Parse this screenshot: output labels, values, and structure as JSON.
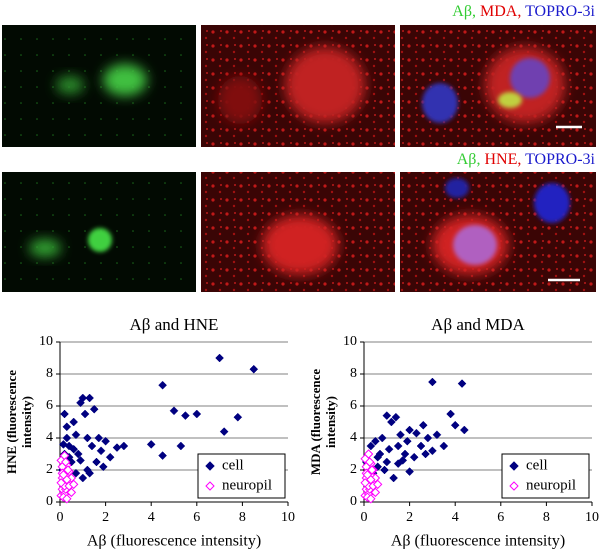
{
  "panels": [
    {
      "label": [
        {
          "text": "Aβ,",
          "color": "#33cc33"
        },
        {
          "text": "MDA,",
          "color": "#e00000"
        },
        {
          "text": "TOPRO-3i",
          "color": "#1a1acc"
        }
      ]
    },
    {
      "label": [
        {
          "text": "Aβ,",
          "color": "#33cc33"
        },
        {
          "text": "HNE,",
          "color": "#e00000"
        },
        {
          "text": "TOPRO-3i",
          "color": "#1a1acc"
        }
      ]
    }
  ],
  "chart_data": [
    {
      "type": "scatter",
      "title": "Aβ and HNE",
      "x_label": "Aβ (fluorescence intensity)",
      "y_label": "HNE (fluorescence intensity)",
      "xlim": [
        0,
        10
      ],
      "xticks": [
        0,
        2,
        4,
        6,
        8,
        10
      ],
      "ylim": [
        0,
        10
      ],
      "yticks": [
        0,
        2,
        4,
        6,
        8,
        10
      ],
      "grid": true,
      "legend": "lower right",
      "series": [
        {
          "name": "cell",
          "color": "#000080",
          "marker": "filled-diamond",
          "x": [
            0.1,
            0.2,
            0.3,
            0.4,
            0.5,
            0.6,
            0.7,
            0.8,
            0.9,
            1.0,
            1.1,
            1.2,
            1.3,
            1.4,
            1.5,
            1.6,
            1.7,
            1.8,
            2.0,
            2.2,
            2.5,
            2.8,
            1.0,
            0.5,
            1.2,
            4.0,
            4.5,
            4.5,
            5.0,
            5.3,
            5.5,
            6.0,
            7.0,
            7.2,
            7.8,
            8.5,
            0.3,
            0.2,
            0.7,
            1.9,
            0.15,
            0.4,
            0.6,
            0.9,
            1.3
          ],
          "values": [
            2.0,
            3.0,
            4.0,
            3.5,
            2.5,
            5.0,
            4.2,
            3.0,
            6.2,
            6.5,
            5.5,
            4.0,
            6.5,
            3.5,
            5.8,
            2.5,
            4.0,
            3.2,
            3.8,
            2.8,
            3.4,
            3.5,
            1.5,
            1.2,
            2.0,
            3.6,
            7.3,
            2.9,
            5.7,
            3.5,
            5.4,
            5.5,
            9.0,
            4.4,
            5.3,
            8.3,
            4.7,
            5.5,
            1.8,
            2.2,
            3.6,
            2.8,
            3.3,
            2.6,
            1.8
          ]
        },
        {
          "name": "neuropil",
          "color": "#ff00ff",
          "marker": "open-diamond",
          "x": [
            0.05,
            0.1,
            0.1,
            0.15,
            0.2,
            0.2,
            0.25,
            0.3,
            0.3,
            0.35,
            0.4,
            0.4,
            0.45,
            0.5,
            0.05,
            0.1,
            0.15,
            0.2,
            0.25,
            0.3,
            0.35,
            0.1,
            0.2,
            0.3,
            0.05,
            0.15,
            0.25,
            0.4,
            0.5,
            0.6
          ],
          "values": [
            0.4,
            0.8,
            1.5,
            1.1,
            0.5,
            1.9,
            1.3,
            0.9,
            2.3,
            1.6,
            0.7,
            1.9,
            1.2,
            1.5,
            2.6,
            2.2,
            0.3,
            2.9,
            0.8,
            0.2,
            2.0,
            1.8,
            1.0,
            1.4,
            1.2,
            1.7,
            2.5,
            1.0,
            0.6,
            1.1
          ]
        }
      ]
    },
    {
      "type": "scatter",
      "title": "Aβ and MDA",
      "x_label": "Aβ (fluorescence intensity)",
      "y_label": "MDA (fluorescence intensity)",
      "xlim": [
        0,
        10
      ],
      "xticks": [
        0,
        2,
        4,
        6,
        8,
        10
      ],
      "ylim": [
        0,
        10
      ],
      "yticks": [
        0,
        2,
        4,
        6,
        8,
        10
      ],
      "grid": true,
      "legend": "lower right",
      "series": [
        {
          "name": "cell",
          "color": "#000080",
          "marker": "filled-diamond",
          "x": [
            0.1,
            0.3,
            0.5,
            0.6,
            0.8,
            1.0,
            1.2,
            1.4,
            1.5,
            1.6,
            1.8,
            2.0,
            2.2,
            2.5,
            2.6,
            2.8,
            3.0,
            3.2,
            3.5,
            3.8,
            4.0,
            4.3,
            4.4,
            1.0,
            1.3,
            0.7,
            2.3,
            0.4,
            1.7,
            3.0,
            2.0,
            0.9,
            0.2,
            1.1,
            1.9,
            2.7,
            0.6,
            1.5
          ],
          "values": [
            2.5,
            3.5,
            3.8,
            2.2,
            4.0,
            5.4,
            5.0,
            5.3,
            3.5,
            4.2,
            3.0,
            4.5,
            2.8,
            3.5,
            4.8,
            4.0,
            7.5,
            4.2,
            3.5,
            5.5,
            4.8,
            7.4,
            4.5,
            2.5,
            1.5,
            3.0,
            4.3,
            1.8,
            2.6,
            3.2,
            1.9,
            2.0,
            3.0,
            3.3,
            3.8,
            3.0,
            2.8,
            2.4
          ]
        },
        {
          "name": "neuropil",
          "color": "#ff00ff",
          "marker": "open-diamond",
          "x": [
            0.05,
            0.1,
            0.1,
            0.15,
            0.2,
            0.2,
            0.25,
            0.3,
            0.3,
            0.35,
            0.4,
            0.4,
            0.45,
            0.5,
            0.05,
            0.1,
            0.15,
            0.2,
            0.25,
            0.3,
            0.35,
            0.1,
            0.2,
            0.3,
            0.05,
            0.15,
            0.25,
            0.4,
            0.5,
            0.6
          ],
          "values": [
            0.4,
            0.8,
            1.5,
            1.1,
            0.5,
            1.9,
            1.3,
            0.9,
            2.4,
            1.6,
            0.7,
            2.0,
            1.2,
            1.5,
            2.7,
            2.2,
            0.3,
            3.0,
            0.8,
            0.2,
            2.0,
            1.8,
            1.0,
            1.4,
            1.2,
            1.7,
            2.5,
            1.0,
            0.6,
            1.1
          ]
        }
      ]
    }
  ]
}
